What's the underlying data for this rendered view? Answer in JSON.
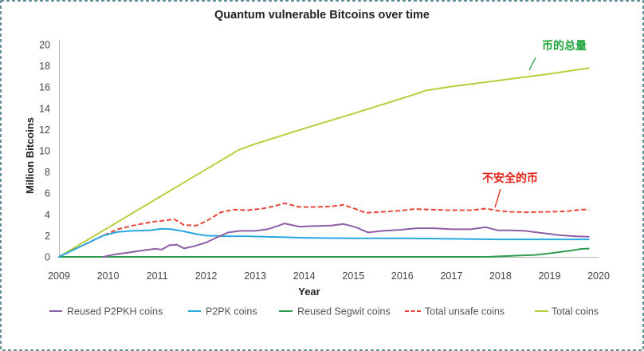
{
  "chart_data": {
    "type": "line",
    "title": "Quantum vulnerable Bitcoins over time",
    "xlabel": "Year",
    "ylabel": "Million Bitcoins",
    "xlim": [
      2009,
      2020
    ],
    "ylim": [
      0,
      20
    ],
    "xticks": [
      2009,
      2010,
      2011,
      2012,
      2013,
      2014,
      2015,
      2016,
      2017,
      2018,
      2019,
      2020
    ],
    "yticks": [
      0,
      2,
      4,
      6,
      8,
      10,
      12,
      14,
      16,
      18,
      20
    ],
    "grid": false,
    "legend_position": "bottom",
    "series": [
      {
        "name": "Reused P2PKH coins",
        "color": "#8e5ea8",
        "line_style": "solid",
        "points": [
          [
            2009.9,
            0
          ],
          [
            2010.15,
            0.25
          ],
          [
            2010.4,
            0.4
          ],
          [
            2010.7,
            0.6
          ],
          [
            2010.95,
            0.75
          ],
          [
            2011.1,
            0.7
          ],
          [
            2011.25,
            1.1
          ],
          [
            2011.4,
            1.15
          ],
          [
            2011.55,
            0.8
          ],
          [
            2011.75,
            1.0
          ],
          [
            2012.0,
            1.35
          ],
          [
            2012.2,
            1.8
          ],
          [
            2012.45,
            2.3
          ],
          [
            2012.7,
            2.45
          ],
          [
            2013.0,
            2.45
          ],
          [
            2013.25,
            2.6
          ],
          [
            2013.45,
            2.9
          ],
          [
            2013.6,
            3.15
          ],
          [
            2013.9,
            2.85
          ],
          [
            2014.2,
            2.9
          ],
          [
            2014.55,
            2.95
          ],
          [
            2014.8,
            3.1
          ],
          [
            2015.05,
            2.8
          ],
          [
            2015.3,
            2.3
          ],
          [
            2015.6,
            2.45
          ],
          [
            2015.95,
            2.55
          ],
          [
            2016.3,
            2.7
          ],
          [
            2016.65,
            2.7
          ],
          [
            2017.0,
            2.6
          ],
          [
            2017.4,
            2.6
          ],
          [
            2017.7,
            2.8
          ],
          [
            2017.95,
            2.5
          ],
          [
            2018.2,
            2.5
          ],
          [
            2018.5,
            2.45
          ],
          [
            2018.85,
            2.25
          ],
          [
            2019.2,
            2.05
          ],
          [
            2019.5,
            1.95
          ],
          [
            2019.8,
            1.9
          ]
        ]
      },
      {
        "name": "P2PK coins",
        "color": "#29a8e0",
        "line_style": "solid",
        "points": [
          [
            2009,
            0
          ],
          [
            2009.9,
            2.0
          ],
          [
            2010.2,
            2.35
          ],
          [
            2010.5,
            2.45
          ],
          [
            2010.85,
            2.5
          ],
          [
            2011.1,
            2.65
          ],
          [
            2011.3,
            2.6
          ],
          [
            2011.55,
            2.4
          ],
          [
            2011.8,
            2.15
          ],
          [
            2012.0,
            2.0
          ],
          [
            2012.4,
            1.95
          ],
          [
            2012.8,
            1.95
          ],
          [
            2013.2,
            1.9
          ],
          [
            2013.6,
            1.85
          ],
          [
            2014.0,
            1.8
          ],
          [
            2015.0,
            1.75
          ],
          [
            2016.0,
            1.75
          ],
          [
            2017.0,
            1.7
          ],
          [
            2018.0,
            1.65
          ],
          [
            2019.0,
            1.65
          ],
          [
            2019.8,
            1.65
          ]
        ]
      },
      {
        "name": "Reused Segwit coins",
        "color": "#2e9c4e",
        "line_style": "solid",
        "points": [
          [
            2009,
            0
          ],
          [
            2017.75,
            0
          ],
          [
            2018.0,
            0.05
          ],
          [
            2018.35,
            0.12
          ],
          [
            2018.7,
            0.18
          ],
          [
            2018.95,
            0.3
          ],
          [
            2019.2,
            0.45
          ],
          [
            2019.45,
            0.6
          ],
          [
            2019.65,
            0.75
          ],
          [
            2019.8,
            0.78
          ]
        ]
      },
      {
        "name": "Total unsafe coins",
        "color": "#e8453c",
        "line_style": "dashed",
        "points": [
          [
            2009,
            0
          ],
          [
            2009.9,
            2.0
          ],
          [
            2010.2,
            2.6
          ],
          [
            2010.5,
            2.95
          ],
          [
            2010.9,
            3.3
          ],
          [
            2011.2,
            3.45
          ],
          [
            2011.35,
            3.55
          ],
          [
            2011.55,
            3.0
          ],
          [
            2011.8,
            2.95
          ],
          [
            2012.0,
            3.35
          ],
          [
            2012.3,
            4.2
          ],
          [
            2012.55,
            4.45
          ],
          [
            2012.85,
            4.4
          ],
          [
            2013.15,
            4.55
          ],
          [
            2013.4,
            4.8
          ],
          [
            2013.6,
            5.05
          ],
          [
            2013.9,
            4.7
          ],
          [
            2014.2,
            4.7
          ],
          [
            2014.55,
            4.75
          ],
          [
            2014.8,
            4.9
          ],
          [
            2015.05,
            4.5
          ],
          [
            2015.25,
            4.15
          ],
          [
            2015.6,
            4.25
          ],
          [
            2015.95,
            4.35
          ],
          [
            2016.25,
            4.5
          ],
          [
            2016.6,
            4.45
          ],
          [
            2016.95,
            4.4
          ],
          [
            2017.4,
            4.4
          ],
          [
            2017.7,
            4.55
          ],
          [
            2017.95,
            4.35
          ],
          [
            2018.2,
            4.25
          ],
          [
            2018.55,
            4.2
          ],
          [
            2019.0,
            4.25
          ],
          [
            2019.35,
            4.3
          ],
          [
            2019.65,
            4.45
          ],
          [
            2019.8,
            4.45
          ]
        ]
      },
      {
        "name": "Total coins",
        "color": "#b6cf3c",
        "line_style": "solid",
        "points": [
          [
            2009,
            0
          ],
          [
            2012.67,
            10.1
          ],
          [
            2013.0,
            10.65
          ],
          [
            2014.0,
            12.1
          ],
          [
            2015.0,
            13.5
          ],
          [
            2016.0,
            14.95
          ],
          [
            2016.5,
            15.7
          ],
          [
            2017.0,
            16.05
          ],
          [
            2018.0,
            16.65
          ],
          [
            2019.0,
            17.25
          ],
          [
            2019.8,
            17.8
          ]
        ]
      }
    ],
    "annotations": [
      {
        "text": "币的总量",
        "color": "#1fa33a"
      },
      {
        "text": "不安全的币",
        "color": "#e3221b"
      }
    ]
  }
}
